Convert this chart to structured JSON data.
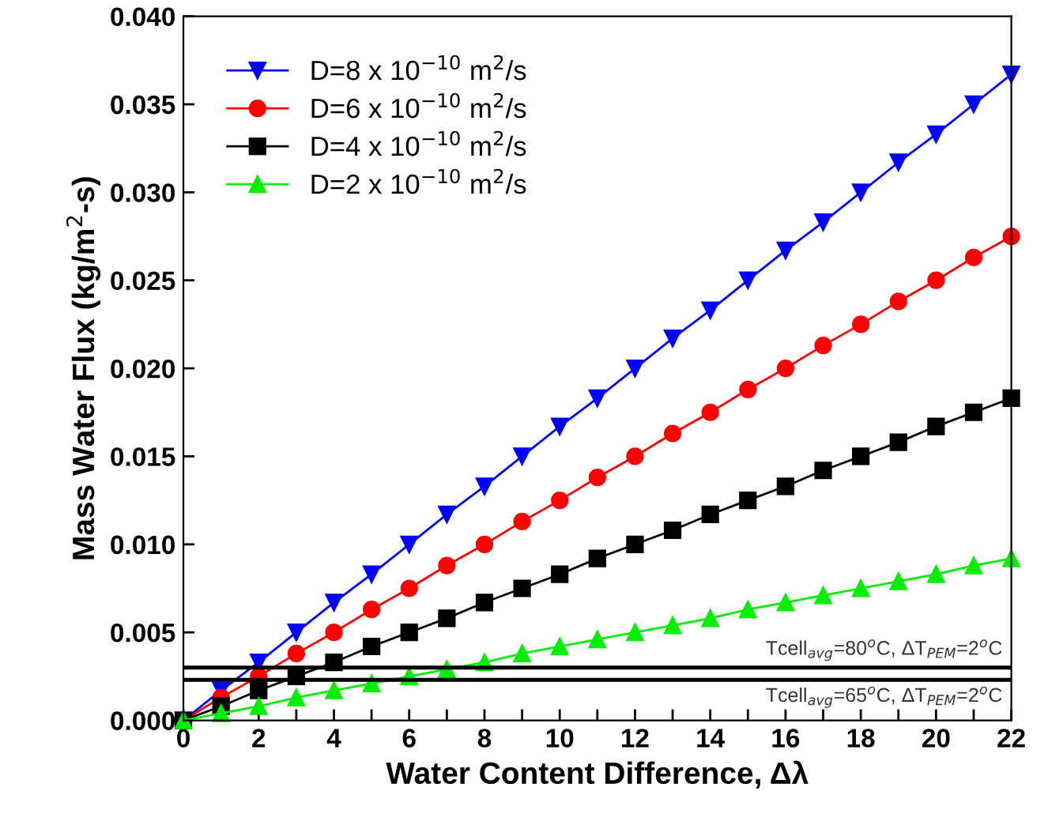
{
  "chart_data": {
    "type": "line",
    "xlabel": "Water Content Difference, Δλ",
    "ylabel": "Mass Water Flux (kg/m$^{2}$-s)",
    "x": [
      0,
      1,
      2,
      3,
      4,
      5,
      6,
      7,
      8,
      9,
      10,
      11,
      12,
      13,
      14,
      15,
      16,
      17,
      18,
      19,
      20,
      21,
      22
    ],
    "series": [
      {
        "name": "D=8 x 10$^{−10}$ m$^{2}$/s",
        "color": "#0000ff",
        "marker": "triangle_down",
        "values": [
          0,
          0.0017,
          0.0033,
          0.005,
          0.0067,
          0.0083,
          0.01,
          0.0117,
          0.0133,
          0.015,
          0.0167,
          0.0183,
          0.02,
          0.0217,
          0.0233,
          0.025,
          0.0267,
          0.0283,
          0.03,
          0.0317,
          0.0333,
          0.035,
          0.0367
        ]
      },
      {
        "name": "D=6 x 10$^{−10}$ m$^{2}$/s",
        "color": "#ff0000",
        "marker": "circle",
        "values": [
          0,
          0.0013,
          0.0025,
          0.0038,
          0.005,
          0.0063,
          0.0075,
          0.0088,
          0.01,
          0.0113,
          0.0125,
          0.0138,
          0.015,
          0.0163,
          0.0175,
          0.0188,
          0.02,
          0.0213,
          0.0225,
          0.0238,
          0.025,
          0.0263,
          0.0275
        ]
      },
      {
        "name": "D=4 x 10$^{−10}$ m$^{2}$/s",
        "color": "#000000",
        "marker": "square",
        "values": [
          0,
          0.0008,
          0.0017,
          0.0025,
          0.0033,
          0.0042,
          0.005,
          0.0058,
          0.0067,
          0.0075,
          0.0083,
          0.0092,
          0.01,
          0.0108,
          0.0117,
          0.0125,
          0.0133,
          0.0142,
          0.015,
          0.0158,
          0.0167,
          0.0175,
          0.0183
        ]
      },
      {
        "name": "D=2 x 10$^{−10}$ m$^{2}$/s",
        "color": "#00ee00",
        "marker": "triangle",
        "values": [
          0,
          0.0004,
          0.0008,
          0.0013,
          0.0017,
          0.0021,
          0.0025,
          0.0029,
          0.0033,
          0.0038,
          0.0042,
          0.0046,
          0.005,
          0.0054,
          0.0058,
          0.0063,
          0.0067,
          0.0071,
          0.0075,
          0.0079,
          0.0083,
          0.0088,
          0.0092
        ]
      }
    ],
    "ref_lines": [
      {
        "axis": "y",
        "value": 0.003,
        "color": "#000000"
      },
      {
        "axis": "y",
        "value": 0.0023,
        "color": "#000000"
      }
    ],
    "annotations": [
      "Tcell$_{avg}$=80$^{o}$C, ΔT$_{PEM}$=2$^{o}$C",
      "Tcell$_{avg}$=65$^{o}$C, ΔT$_{PEM}$=2$^{o}$C"
    ],
    "xlim": [
      0,
      22
    ],
    "xticks": [
      0,
      {
        "value": 1,
        "label": null
      },
      2,
      {
        "value": 3,
        "label": null
      },
      4,
      {
        "value": 5,
        "label": null
      },
      6,
      {
        "value": 7,
        "label": null
      },
      8,
      {
        "value": 9,
        "label": null
      },
      10,
      {
        "value": 11,
        "label": null
      },
      12,
      {
        "value": 13,
        "label": null
      },
      14,
      {
        "value": 15,
        "label": null
      },
      16,
      {
        "value": 17,
        "label": null
      },
      18,
      {
        "value": 19,
        "label": null
      },
      20,
      {
        "value": 21,
        "label": null
      },
      22
    ],
    "ylim": [
      0,
      0.04
    ],
    "yticks": [
      {
        "value": 0,
        "label": "0.000"
      },
      {
        "value": 0.005,
        "label": "0.005"
      },
      {
        "value": 0.01,
        "label": "0.010"
      },
      {
        "value": 0.015,
        "label": "0.015"
      },
      {
        "value": 0.02,
        "label": "0.020"
      },
      {
        "value": 0.025,
        "label": "0.025"
      },
      {
        "value": 0.03,
        "label": "0.030"
      },
      {
        "value": 0.035,
        "label": "0.035"
      },
      {
        "value": 0.04,
        "label": "0.040"
      }
    ],
    "grid": false,
    "legend": "top left",
    "line_style": "solid"
  }
}
